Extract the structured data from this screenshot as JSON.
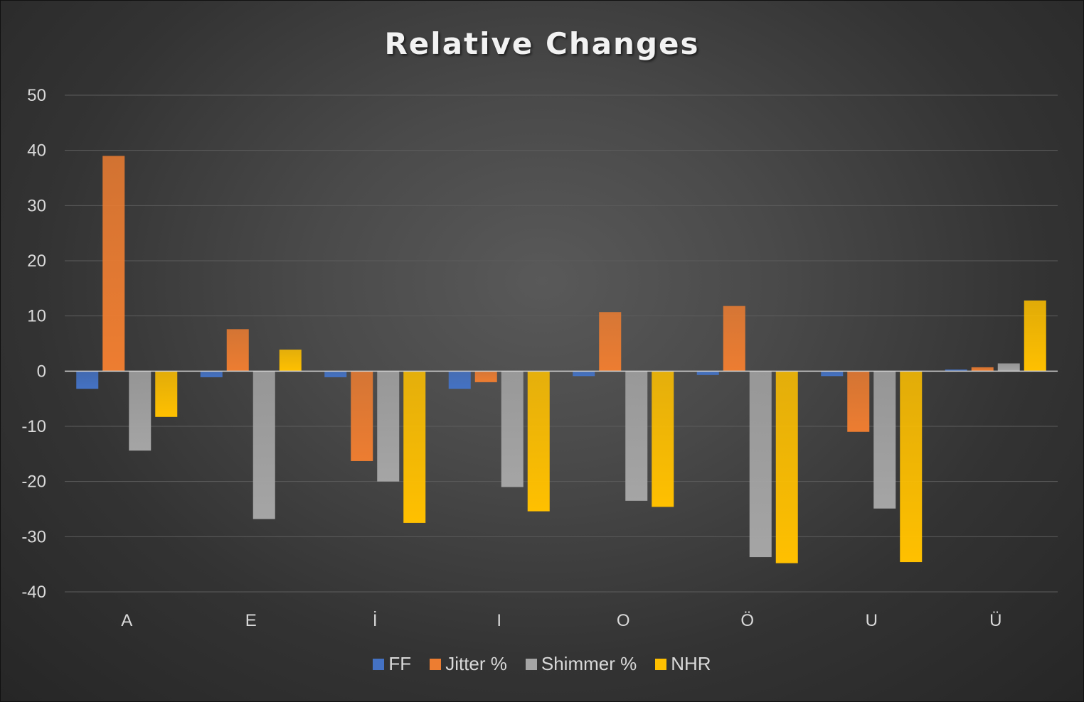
{
  "chart_data": {
    "type": "bar",
    "title": "Relative Changes",
    "categories": [
      "A",
      "E",
      "İ",
      "I",
      "O",
      "Ö",
      "U",
      "Ü"
    ],
    "ylim": [
      -40,
      50
    ],
    "yticks": [
      "50",
      "40",
      "30",
      "20",
      "10",
      "0",
      "-10",
      "-20",
      "-30",
      "-40"
    ],
    "ytick_values": [
      50,
      40,
      30,
      20,
      10,
      0,
      -10,
      -20,
      -30,
      -40
    ],
    "grid": true,
    "legend_position": "bottom",
    "series": [
      {
        "name": "FF",
        "color": "#4472c4",
        "values": [
          -3.2,
          -1.1,
          -1.1,
          -3.2,
          -0.9,
          -0.7,
          -0.9,
          0.3
        ]
      },
      {
        "name": "Jitter %",
        "color": "#ed7d31",
        "values": [
          39.0,
          7.6,
          -16.3,
          -2.0,
          10.7,
          11.8,
          -11.0,
          0.7
        ]
      },
      {
        "name": "Shimmer %",
        "color": "#a5a5a5",
        "values": [
          -14.4,
          -26.8,
          -20.0,
          -21.0,
          -23.5,
          -33.7,
          -24.9,
          1.4
        ]
      },
      {
        "name": "NHR",
        "color": "#ffc000",
        "values": [
          -8.3,
          3.9,
          -27.5,
          -25.4,
          -24.6,
          -34.8,
          -34.6,
          12.8
        ]
      }
    ]
  }
}
